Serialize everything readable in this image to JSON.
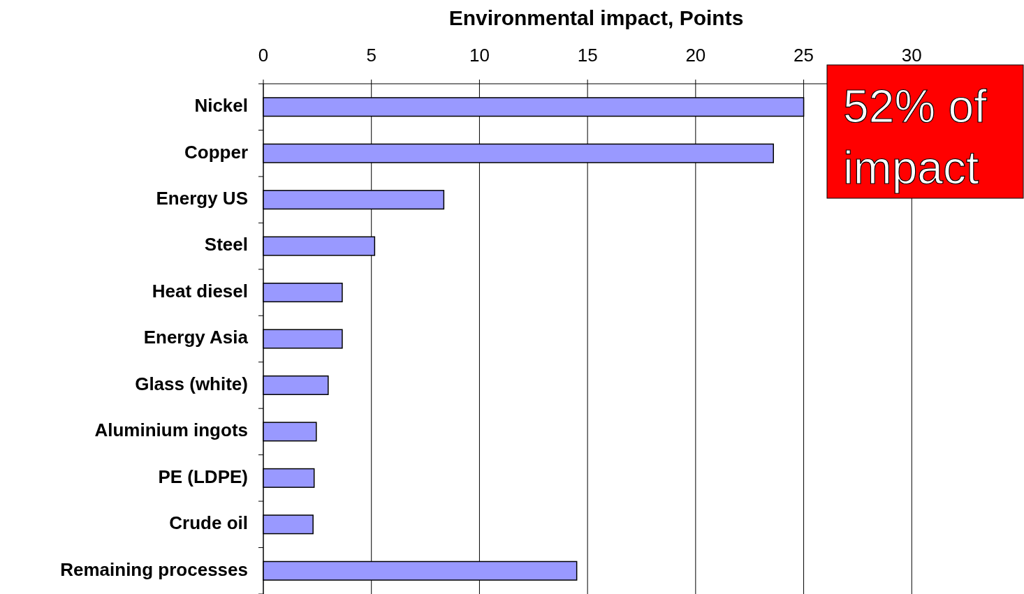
{
  "chart_data": {
    "type": "bar",
    "orientation": "horizontal",
    "xlabel": "Environmental impact, Points",
    "categories": [
      "Nickel",
      "Copper",
      "Energy US",
      "Steel",
      "Heat diesel",
      "Energy Asia",
      "Glass (white)",
      "Aluminium ingots",
      "PE (LDPE)",
      "Crude oil",
      "Remaining processes"
    ],
    "values": [
      25.0,
      23.6,
      8.35,
      5.15,
      3.65,
      3.65,
      3.0,
      2.45,
      2.35,
      2.3,
      14.5
    ],
    "color": "#9999ff",
    "xlim": [
      0,
      35
    ],
    "xticks": [
      0,
      5,
      10,
      15,
      20,
      25,
      30
    ],
    "grid": "x",
    "annotations": [
      "52% of impact"
    ]
  }
}
